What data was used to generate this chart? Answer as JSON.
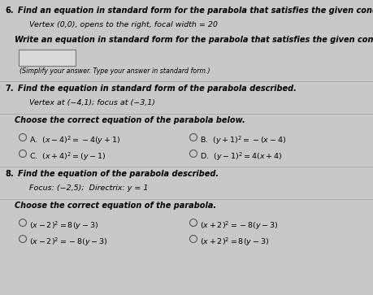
{
  "bg_color": "#c8c8c8",
  "white": "#ffffff",
  "text_color": "#000000",
  "gray_text": "#444444",
  "figsize": [
    4.59,
    3.63
  ],
  "dpi": 100,
  "sections": [
    {
      "number": "6.",
      "header": "Find an equation in standard form for the parabola that satisfies the given conditions.",
      "subtext": "Vertex (0,0), opens to the right, focal width = 20",
      "divider_after_sub": false,
      "prompt": "Write an equation in standard form for the parabola that satisfies the given conditions.",
      "has_box": true,
      "box_label": "(Simplify your answer. Type your answer in standard form.)",
      "divider_after": true,
      "choices": []
    },
    {
      "number": "7.",
      "header": "Find the equation in standard form of the parabola described.",
      "subtext": "Vertex at (−4,1); focus at (−3,1)",
      "divider_after_sub": true,
      "prompt": "Choose the correct equation of the parabola below.",
      "has_box": false,
      "divider_after": true,
      "choices": [
        [
          "A.  $(x-4)^2=-4(y+1)$",
          "B.  $(y+1)^2=-(x-4)$"
        ],
        [
          "C.  $(x+4)^2=(y-1)$",
          "D.  $(y-1)^2=4(x+4)$"
        ]
      ]
    },
    {
      "number": "8.",
      "header": "Find the equation of the parabola described.",
      "subtext": "Focus: (−2,5);  Directrix: y = 1",
      "divider_after_sub": true,
      "prompt": "Choose the correct equation of the parabola.",
      "has_box": false,
      "divider_after": false,
      "choices": [
        [
          "$(x-2)^2=8(y-3)$",
          "$(x+2)^2=-8(y-3)$"
        ],
        [
          "$(x-2)^2=-8(y-3)$",
          "$(x+2)^2=8(y-3)$"
        ]
      ]
    }
  ]
}
